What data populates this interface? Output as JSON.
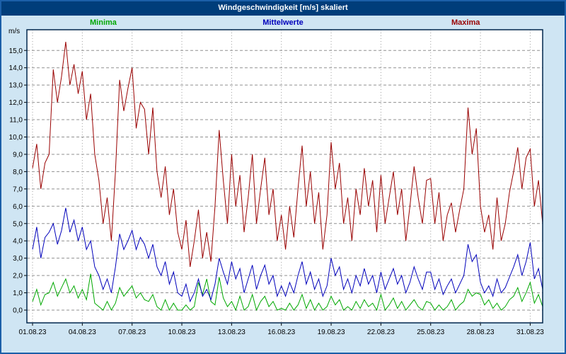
{
  "window": {
    "title": "Windgeschwindigkeit [m/s] skaliert"
  },
  "axis": {
    "unit_label": "m/s"
  },
  "chart_data": {
    "type": "line",
    "title": "Windgeschwindigkeit [m/s] skaliert",
    "xlabel": "",
    "ylabel": "m/s",
    "grid": true,
    "legend_position": "top",
    "points_per_day": 4,
    "xlim_days": [
      0,
      30.75
    ],
    "ylim": [
      -0.75,
      16.2
    ],
    "x_tick_days": [
      0,
      3,
      6,
      9,
      12,
      15,
      18,
      21,
      24,
      27,
      30
    ],
    "x_tick_labels": [
      "01.08.23",
      "04.08.23",
      "07.08.23",
      "10.08.23",
      "13.08.23",
      "16.08.23",
      "19.08.23",
      "22.08.23",
      "25.08.23",
      "28.08.23",
      "31.08.23"
    ],
    "y_ticks": [
      0,
      1,
      2,
      3,
      4,
      5,
      6,
      7,
      8,
      9,
      10,
      11,
      12,
      13,
      14,
      15
    ],
    "y_tick_labels": [
      "0,0",
      "1,0",
      "2,0",
      "3,0",
      "4,0",
      "5,0",
      "6,0",
      "7,0",
      "8,0",
      "9,0",
      "10,0",
      "11,0",
      "12,0",
      "13,0",
      "14,0",
      "15,0"
    ],
    "colors": {
      "plot_bg": "#ffffff",
      "plot_border": "#00264d",
      "grid_h": "#909090",
      "grid_v": "#a0a0a0",
      "tick": "#000000",
      "titlebar": "#003d7a",
      "page_bg": "#cfe5f3"
    },
    "series": [
      {
        "name": "Minima",
        "color": "#00a800",
        "values": [
          0.5,
          1.2,
          0.3,
          0.9,
          1.0,
          1.6,
          0.8,
          1.3,
          1.8,
          1.0,
          1.4,
          0.7,
          1.2,
          0.6,
          2.1,
          0.4,
          0.2,
          0.0,
          0.5,
          0.0,
          0.4,
          1.3,
          0.8,
          1.1,
          1.4,
          0.7,
          1.0,
          0.6,
          0.5,
          0.9,
          0.2,
          0.0,
          0.6,
          0.0,
          0.4,
          0.0,
          0.0,
          0.3,
          0.0,
          0.2,
          1.6,
          0.9,
          1.8,
          0.5,
          0.3,
          1.9,
          0.7,
          0.2,
          0.5,
          0.0,
          0.8,
          0.0,
          0.2,
          0.9,
          0.0,
          0.5,
          0.8,
          0.2,
          0.5,
          0.0,
          0.1,
          0.0,
          0.4,
          0.0,
          0.3,
          0.9,
          0.1,
          0.6,
          0.0,
          0.4,
          0.0,
          0.2,
          0.8,
          0.3,
          0.6,
          0.0,
          0.2,
          0.0,
          0.5,
          0.1,
          0.6,
          0.2,
          0.4,
          0.0,
          0.9,
          0.0,
          0.3,
          0.7,
          0.1,
          0.5,
          0.0,
          0.3,
          0.6,
          0.2,
          0.0,
          0.5,
          0.4,
          0.0,
          0.3,
          0.0,
          0.2,
          0.6,
          0.0,
          0.3,
          0.5,
          1.2,
          0.8,
          1.0,
          0.9,
          0.3,
          0.6,
          0.1,
          0.4,
          0.0,
          0.2,
          0.6,
          0.8,
          1.3,
          0.5,
          1.0,
          1.6,
          0.4,
          0.9,
          0.2
        ]
      },
      {
        "name": "Mittelwerte",
        "color": "#0000bb",
        "values": [
          3.5,
          4.8,
          3.0,
          4.2,
          4.5,
          5.0,
          3.8,
          4.6,
          5.9,
          4.5,
          5.2,
          4.0,
          4.8,
          3.5,
          4.0,
          2.5,
          2.0,
          1.2,
          1.8,
          1.0,
          2.5,
          4.4,
          3.5,
          4.0,
          4.6,
          3.5,
          4.2,
          3.8,
          3.0,
          3.8,
          2.5,
          2.0,
          2.8,
          1.5,
          2.2,
          1.0,
          0.8,
          1.5,
          0.5,
          1.0,
          1.8,
          0.8,
          1.2,
          0.6,
          1.5,
          3.0,
          2.2,
          1.5,
          2.8,
          1.8,
          2.4,
          1.0,
          1.8,
          2.6,
          1.2,
          2.0,
          2.6,
          1.5,
          2.0,
          0.8,
          1.4,
          0.8,
          1.6,
          1.0,
          2.0,
          2.8,
          1.5,
          2.2,
          1.2,
          1.8,
          0.8,
          1.4,
          3.0,
          2.0,
          2.5,
          1.2,
          1.8,
          1.0,
          2.0,
          1.4,
          2.4,
          1.5,
          2.0,
          1.0,
          2.2,
          1.2,
          1.8,
          2.4,
          1.5,
          2.0,
          1.0,
          1.6,
          2.5,
          1.8,
          1.2,
          2.2,
          2.2,
          1.2,
          1.8,
          0.9,
          1.4,
          1.8,
          1.0,
          1.5,
          2.0,
          3.8,
          2.8,
          3.2,
          1.6,
          1.0,
          1.4,
          0.8,
          1.8,
          1.0,
          1.3,
          1.9,
          2.5,
          3.2,
          2.0,
          2.8,
          3.9,
          1.8,
          2.4,
          1.2
        ]
      },
      {
        "name": "Maxima",
        "color": "#990000",
        "values": [
          8.2,
          9.6,
          7.0,
          8.5,
          9.0,
          13.9,
          12.0,
          13.5,
          15.5,
          13.0,
          14.2,
          12.5,
          13.8,
          11.0,
          12.5,
          9.0,
          7.5,
          5.0,
          6.5,
          4.0,
          8.0,
          13.3,
          11.5,
          12.8,
          14.0,
          10.5,
          12.0,
          11.6,
          9.0,
          11.7,
          8.0,
          6.5,
          8.3,
          5.5,
          7.0,
          4.5,
          3.5,
          5.2,
          2.5,
          4.0,
          5.8,
          3.0,
          4.5,
          2.8,
          6.0,
          10.4,
          7.5,
          5.0,
          9.0,
          6.0,
          7.8,
          4.5,
          6.5,
          9.0,
          5.0,
          7.0,
          8.8,
          5.5,
          7.0,
          4.0,
          5.5,
          3.5,
          6.0,
          4.2,
          7.0,
          9.5,
          6.0,
          8.0,
          5.0,
          6.8,
          3.5,
          5.5,
          9.7,
          7.0,
          8.5,
          5.0,
          6.5,
          4.0,
          7.0,
          5.5,
          8.2,
          6.0,
          7.5,
          4.5,
          7.8,
          5.0,
          6.5,
          8.0,
          5.5,
          7.0,
          4.0,
          6.0,
          8.3,
          6.5,
          5.0,
          7.5,
          7.6,
          5.0,
          6.8,
          4.0,
          5.5,
          6.2,
          4.5,
          5.8,
          7.0,
          11.7,
          9.0,
          10.5,
          6.0,
          4.5,
          5.5,
          3.5,
          6.5,
          4.0,
          5.0,
          6.8,
          8.0,
          9.4,
          7.0,
          8.8,
          9.3,
          6.0,
          7.5,
          5.0
        ]
      }
    ]
  }
}
